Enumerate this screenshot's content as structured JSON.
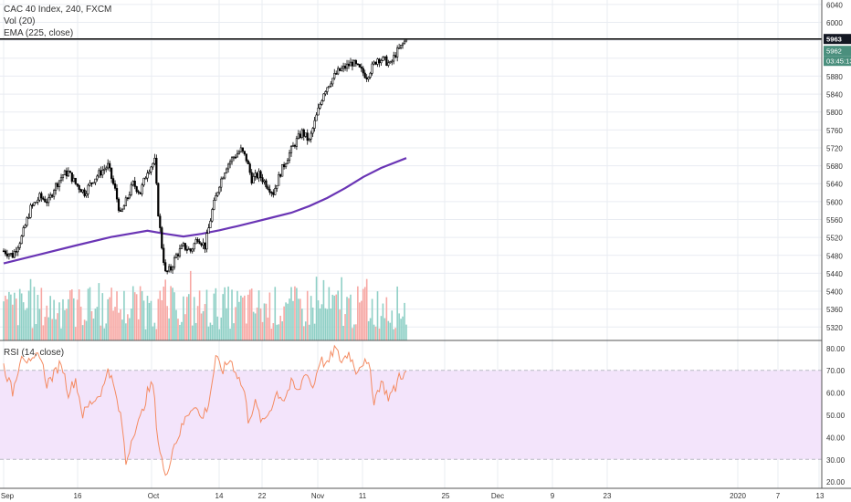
{
  "legend": {
    "symbol": "CAC 40 Index, 240, FXCM",
    "volume": "Vol (20)",
    "ema": "EMA (225, close)",
    "rsi": "RSI (14, close)"
  },
  "price_axis": {
    "ticks": [
      "6040",
      "6000",
      "5960",
      "5920",
      "5880",
      "5840",
      "5800",
      "5760",
      "5720",
      "5680",
      "5640",
      "5600",
      "5560",
      "5520",
      "5480",
      "5440",
      "5400",
      "5360",
      "5320"
    ],
    "tags": [
      {
        "label": "5963",
        "bg": "#131722",
        "fg": "#ffffff"
      },
      {
        "label": "5962",
        "bg": "#4a8f7d",
        "fg": "#ffffff"
      },
      {
        "label": "03:45:13",
        "bg": "#4a8f7d",
        "fg": "#ffffff"
      }
    ]
  },
  "rsi_axis": {
    "ticks": [
      "80.00",
      "70.00",
      "60.00",
      "50.00",
      "40.00",
      "30.00",
      "20.00"
    ]
  },
  "time_axis": {
    "ticks": [
      "Sep",
      "16",
      "Oct",
      "14",
      "22",
      "Nov",
      "11",
      "25",
      "Dec",
      "9",
      "23",
      "2020",
      "7",
      "13"
    ]
  },
  "colors": {
    "up": "#ffffff",
    "down": "#000000",
    "wick": "#000000",
    "vol_up": "#8fd0c6",
    "vol_down": "#f7a8a4",
    "ema": "#6a35b5",
    "rsi_line": "#f48b62",
    "rsi_band": "#f3e4fb",
    "hline": "#000000",
    "grid": "#e9ecf2"
  },
  "chart_data": [
    {
      "type": "candlestick",
      "ylim": [
        5290,
        6050
      ],
      "x_range": [
        0,
        235
      ],
      "key_points": [
        [
          0,
          5490
        ],
        [
          5,
          5480
        ],
        [
          10,
          5520
        ],
        [
          15,
          5585
        ],
        [
          20,
          5610
        ],
        [
          25,
          5600
        ],
        [
          28,
          5630
        ],
        [
          33,
          5660
        ],
        [
          36,
          5665
        ],
        [
          40,
          5640
        ],
        [
          45,
          5620
        ],
        [
          50,
          5650
        ],
        [
          55,
          5670
        ],
        [
          58,
          5680
        ],
        [
          62,
          5625
        ],
        [
          65,
          5570
        ],
        [
          68,
          5600
        ],
        [
          72,
          5640
        ],
        [
          76,
          5620
        ],
        [
          80,
          5670
        ],
        [
          84,
          5690
        ],
        [
          86,
          5575
        ],
        [
          88,
          5500
        ],
        [
          90,
          5440
        ],
        [
          93,
          5450
        ],
        [
          96,
          5480
        ],
        [
          100,
          5500
        ],
        [
          104,
          5490
        ],
        [
          108,
          5520
        ],
        [
          112,
          5500
        ],
        [
          116,
          5580
        ],
        [
          120,
          5640
        ],
        [
          124,
          5680
        ],
        [
          128,
          5700
        ],
        [
          132,
          5715
        ],
        [
          135,
          5695
        ],
        [
          138,
          5650
        ],
        [
          142,
          5660
        ],
        [
          146,
          5640
        ],
        [
          150,
          5620
        ],
        [
          154,
          5665
        ],
        [
          158,
          5700
        ],
        [
          162,
          5730
        ],
        [
          166,
          5755
        ],
        [
          170,
          5735
        ],
        [
          174,
          5790
        ],
        [
          178,
          5845
        ],
        [
          182,
          5870
        ],
        [
          186,
          5890
        ],
        [
          190,
          5900
        ],
        [
          194,
          5910
        ],
        [
          198,
          5895
        ],
        [
          202,
          5880
        ],
        [
          205,
          5900
        ],
        [
          208,
          5920
        ],
        [
          212,
          5915
        ],
        [
          215,
          5905
        ],
        [
          218,
          5930
        ],
        [
          221,
          5945
        ],
        [
          224,
          5963
        ]
      ]
    },
    {
      "type": "line",
      "series_name": "EMA (225, close)",
      "points": [
        [
          0,
          5462
        ],
        [
          20,
          5482
        ],
        [
          40,
          5502
        ],
        [
          60,
          5521
        ],
        [
          80,
          5535
        ],
        [
          90,
          5528
        ],
        [
          100,
          5522
        ],
        [
          110,
          5528
        ],
        [
          120,
          5536
        ],
        [
          130,
          5545
        ],
        [
          140,
          5555
        ],
        [
          150,
          5565
        ],
        [
          160,
          5575
        ],
        [
          170,
          5590
        ],
        [
          180,
          5608
        ],
        [
          190,
          5630
        ],
        [
          200,
          5655
        ],
        [
          210,
          5675
        ],
        [
          224,
          5697
        ]
      ]
    },
    {
      "type": "bar",
      "series_name": "Vol (20)",
      "values_relative": "0..1 of panel",
      "seed": 7
    },
    {
      "type": "line",
      "series_name": "RSI (14, close)",
      "ylim": [
        17,
        83
      ],
      "band": [
        30,
        70
      ],
      "points": [
        [
          0,
          72
        ],
        [
          5,
          60
        ],
        [
          10,
          78
        ],
        [
          15,
          72
        ],
        [
          20,
          78
        ],
        [
          24,
          64
        ],
        [
          28,
          68
        ],
        [
          32,
          74
        ],
        [
          36,
          60
        ],
        [
          40,
          66
        ],
        [
          44,
          50
        ],
        [
          48,
          55
        ],
        [
          52,
          58
        ],
        [
          56,
          63
        ],
        [
          58,
          72
        ],
        [
          62,
          60
        ],
        [
          66,
          45
        ],
        [
          68,
          28
        ],
        [
          72,
          42
        ],
        [
          76,
          48
        ],
        [
          80,
          60
        ],
        [
          83,
          64
        ],
        [
          86,
          38
        ],
        [
          88,
          30
        ],
        [
          90,
          21
        ],
        [
          94,
          35
        ],
        [
          98,
          42
        ],
        [
          102,
          50
        ],
        [
          106,
          55
        ],
        [
          110,
          48
        ],
        [
          114,
          55
        ],
        [
          118,
          75
        ],
        [
          122,
          70
        ],
        [
          126,
          75
        ],
        [
          130,
          68
        ],
        [
          134,
          60
        ],
        [
          136,
          48
        ],
        [
          140,
          55
        ],
        [
          144,
          46
        ],
        [
          148,
          52
        ],
        [
          152,
          60
        ],
        [
          156,
          57
        ],
        [
          160,
          64
        ],
        [
          164,
          60
        ],
        [
          168,
          70
        ],
        [
          172,
          62
        ],
        [
          176,
          75
        ],
        [
          180,
          72
        ],
        [
          184,
          80
        ],
        [
          188,
          74
        ],
        [
          192,
          78
        ],
        [
          196,
          70
        ],
        [
          200,
          74
        ],
        [
          204,
          70
        ],
        [
          206,
          56
        ],
        [
          210,
          65
        ],
        [
          214,
          58
        ],
        [
          218,
          62
        ],
        [
          220,
          68
        ],
        [
          224,
          68
        ]
      ]
    }
  ]
}
